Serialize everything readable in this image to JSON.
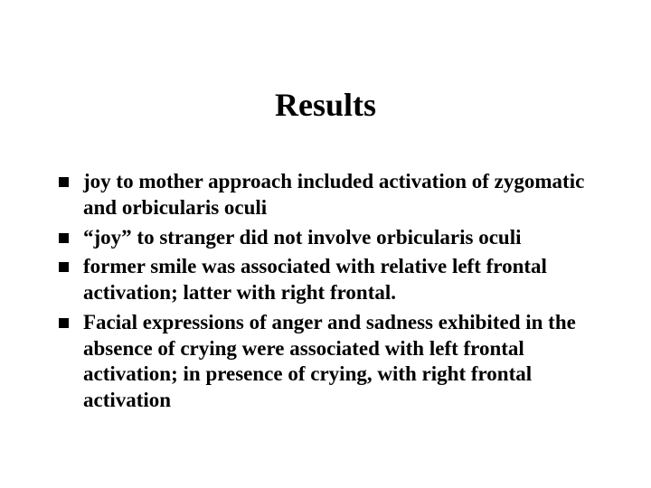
{
  "background_color": "#ffffff",
  "text_color": "#000000",
  "font_family": "Times New Roman",
  "title": {
    "text": "Results",
    "fontsize": 36,
    "weight": "bold",
    "align": "center"
  },
  "bullets": {
    "marker_shape": "square",
    "marker_color": "#000000",
    "marker_size": 11,
    "fontsize": 23,
    "weight": "bold",
    "items": [
      "joy to mother approach included activation of zygomatic and orbicularis oculi",
      "“joy” to stranger did not involve orbicularis oculi",
      "former smile was associated with relative left frontal activation; latter with right frontal.",
      "Facial expressions of anger and sadness exhibited in the absence of crying were associated with left frontal activation; in presence of crying, with right frontal activation"
    ]
  }
}
